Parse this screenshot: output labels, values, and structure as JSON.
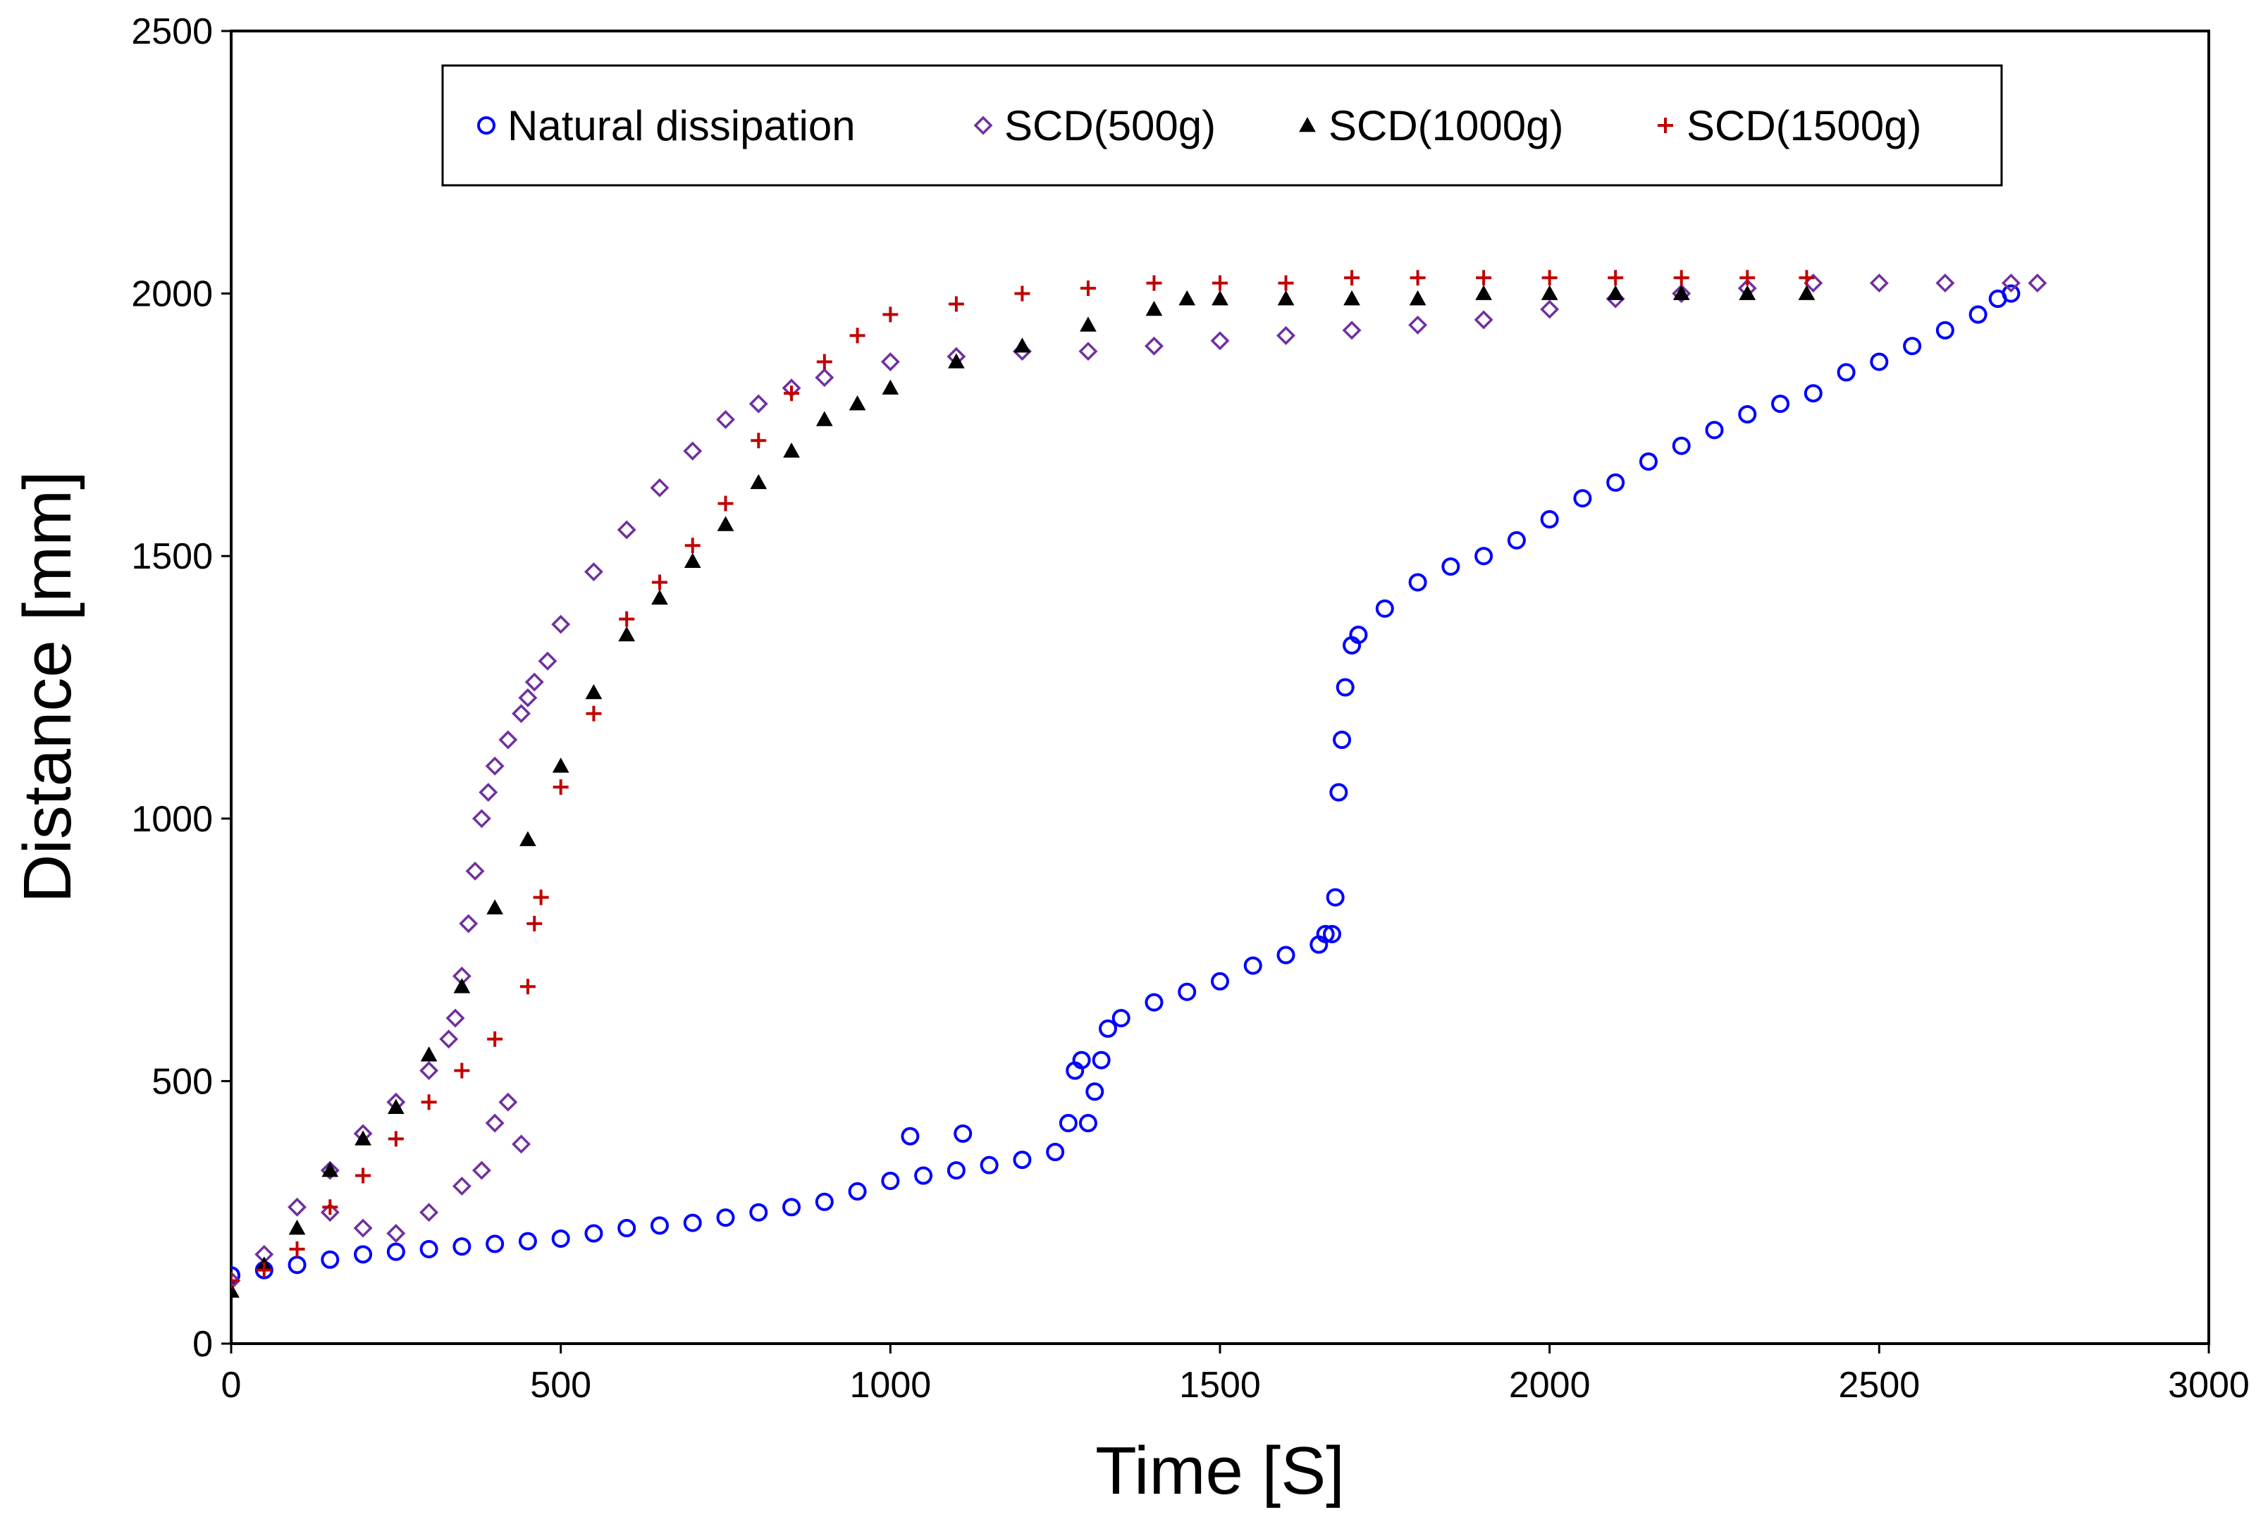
{
  "chart_data": {
    "type": "scatter",
    "title": "",
    "xlabel": "Time [S]",
    "ylabel": "Distance [mm]",
    "xlim": [
      0,
      3000
    ],
    "ylim": [
      0,
      2500
    ],
    "xticks": [
      0,
      500,
      1000,
      1500,
      2000,
      2500,
      3000
    ],
    "yticks": [
      0,
      500,
      1000,
      1500,
      2000,
      2500
    ],
    "grid": false,
    "legend_position": "top-center",
    "series": [
      {
        "name": "Natural dissipation",
        "marker": "circle-open",
        "color": "#0000ff",
        "x": [
          0,
          50,
          100,
          150,
          200,
          250,
          300,
          350,
          400,
          450,
          500,
          550,
          600,
          650,
          700,
          750,
          800,
          850,
          900,
          950,
          1000,
          1030,
          1050,
          1100,
          1110,
          1150,
          1200,
          1250,
          1270,
          1280,
          1290,
          1300,
          1310,
          1320,
          1330,
          1350,
          1400,
          1450,
          1500,
          1550,
          1600,
          1650,
          1660,
          1670,
          1675,
          1680,
          1685,
          1690,
          1700,
          1710,
          1750,
          1800,
          1850,
          1900,
          1950,
          2000,
          2050,
          2100,
          2150,
          2200,
          2250,
          2300,
          2350,
          2400,
          2450,
          2500,
          2550,
          2600,
          2650,
          2680,
          2700
        ],
        "y": [
          130,
          140,
          150,
          160,
          170,
          175,
          180,
          185,
          190,
          195,
          200,
          210,
          220,
          225,
          230,
          240,
          250,
          260,
          270,
          290,
          310,
          395,
          320,
          330,
          400,
          340,
          350,
          365,
          420,
          520,
          540,
          420,
          480,
          540,
          600,
          620,
          650,
          670,
          690,
          720,
          740,
          760,
          780,
          780,
          850,
          1050,
          1150,
          1250,
          1330,
          1350,
          1400,
          1450,
          1480,
          1500,
          1530,
          1570,
          1610,
          1640,
          1680,
          1710,
          1740,
          1770,
          1790,
          1810,
          1850,
          1870,
          1900,
          1930,
          1960,
          1990,
          2000
        ]
      },
      {
        "name": "SCD(500g)",
        "marker": "diamond-open",
        "color": "#7030a0",
        "x": [
          0,
          50,
          100,
          150,
          200,
          250,
          300,
          330,
          340,
          350,
          360,
          370,
          380,
          390,
          400,
          420,
          440,
          450,
          460,
          480,
          500,
          550,
          600,
          650,
          700,
          750,
          800,
          850,
          900,
          1000,
          1100,
          1200,
          1300,
          1400,
          1500,
          1600,
          1700,
          1800,
          1900,
          2000,
          2100,
          2200,
          2300,
          2400,
          2500,
          2600,
          2700,
          2740,
          150,
          200,
          250,
          300,
          350,
          380,
          400,
          420,
          440
        ],
        "y": [
          120,
          170,
          260,
          330,
          400,
          460,
          520,
          580,
          620,
          700,
          800,
          900,
          1000,
          1050,
          1100,
          1150,
          1200,
          1230,
          1260,
          1300,
          1370,
          1470,
          1550,
          1630,
          1700,
          1760,
          1790,
          1820,
          1840,
          1870,
          1880,
          1890,
          1890,
          1900,
          1910,
          1920,
          1930,
          1940,
          1950,
          1970,
          1990,
          2000,
          2010,
          2020,
          2020,
          2020,
          2020,
          2020,
          250,
          220,
          210,
          250,
          300,
          330,
          420,
          460,
          380
        ]
      },
      {
        "name": "SCD(1000g)",
        "marker": "triangle-filled",
        "color": "#000000",
        "x": [
          0,
          50,
          100,
          150,
          200,
          250,
          300,
          350,
          400,
          450,
          500,
          550,
          600,
          650,
          700,
          750,
          800,
          850,
          900,
          950,
          1000,
          1100,
          1200,
          1300,
          1400,
          1450,
          1500,
          1600,
          1700,
          1800,
          1900,
          2000,
          2100,
          2200,
          2300,
          2390
        ],
        "y": [
          100,
          150,
          220,
          330,
          390,
          450,
          550,
          680,
          830,
          960,
          1100,
          1240,
          1350,
          1420,
          1490,
          1560,
          1640,
          1700,
          1760,
          1790,
          1820,
          1870,
          1900,
          1940,
          1970,
          1990,
          1990,
          1990,
          1990,
          1990,
          2000,
          2000,
          2000,
          2000,
          2000,
          2000
        ]
      },
      {
        "name": "SCD(1500g)",
        "marker": "plus",
        "color": "#c00000",
        "x": [
          0,
          50,
          100,
          150,
          200,
          250,
          300,
          350,
          400,
          450,
          460,
          470,
          500,
          550,
          600,
          650,
          700,
          750,
          800,
          850,
          900,
          950,
          1000,
          1100,
          1200,
          1300,
          1400,
          1500,
          1600,
          1700,
          1800,
          1900,
          2000,
          2100,
          2200,
          2300,
          2390
        ],
        "y": [
          120,
          140,
          180,
          260,
          320,
          390,
          460,
          520,
          580,
          680,
          800,
          850,
          1060,
          1200,
          1380,
          1450,
          1520,
          1600,
          1720,
          1810,
          1870,
          1920,
          1960,
          1980,
          2000,
          2010,
          2020,
          2020,
          2020,
          2030,
          2030,
          2030,
          2030,
          2030,
          2030,
          2030,
          2030
        ]
      }
    ]
  }
}
